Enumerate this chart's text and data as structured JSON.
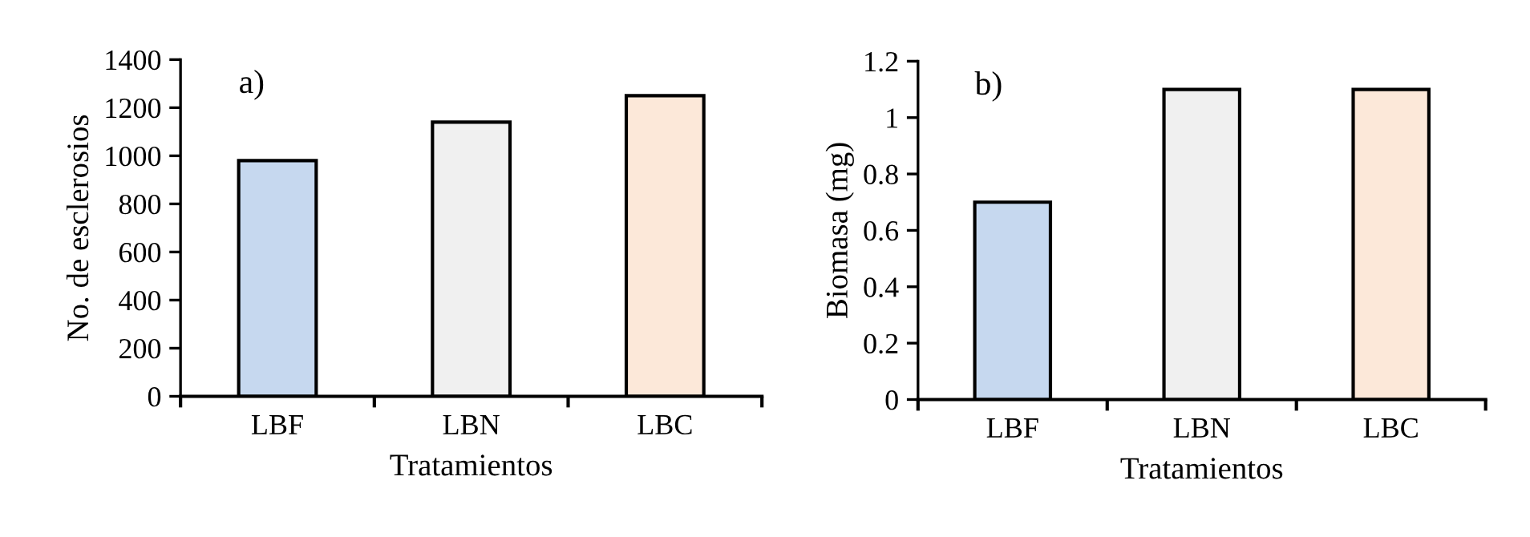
{
  "chart_data": [
    {
      "type": "bar",
      "annotations": [
        "a)"
      ],
      "xlabel": "Tratamientos",
      "ylabel": "No. de esclerosios",
      "categories": [
        "LBF",
        "LBN",
        "LBC"
      ],
      "values": [
        980,
        1140,
        1250
      ],
      "colors": [
        "#c6d8ef",
        "#f0f0f0",
        "#fce8d9"
      ],
      "ylim": [
        0,
        1400
      ],
      "yticks": [
        0,
        200,
        400,
        600,
        800,
        1000,
        1200,
        1400
      ],
      "grid": false
    },
    {
      "type": "bar",
      "annotations": [
        "b)"
      ],
      "xlabel": "Tratamientos",
      "ylabel": "Biomasa (mg)",
      "categories": [
        "LBF",
        "LBN",
        "LBC"
      ],
      "values": [
        0.7,
        1.1,
        1.1
      ],
      "colors": [
        "#c6d8ef",
        "#f0f0f0",
        "#fce8d9"
      ],
      "ylim": [
        0,
        1.2
      ],
      "yticks": [
        0,
        0.2,
        0.4,
        0.6,
        0.8,
        1,
        1.2
      ],
      "grid": false
    }
  ]
}
